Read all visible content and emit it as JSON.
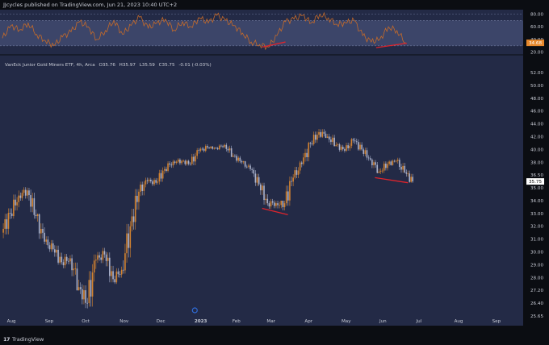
{
  "header": {
    "publisher_line": "JJcycles published on TradingView.com, Jun 21, 2023 10:40 UTC+2"
  },
  "footer": {
    "brand": "TradingView",
    "logo_glyph": "17"
  },
  "colors": {
    "background": "#232a46",
    "osc_band": "#3c4569",
    "osc_line": "#c46a2a",
    "up_candle": "#d4832f",
    "down_candle": "#aab2cc",
    "divergence": "#e0242c",
    "price_label_bg": "#ffffff",
    "osc_label_bg": "#e8882b",
    "event_marker": "#2f6bd6"
  },
  "chart_data": [
    {
      "type": "line",
      "role": "oscillator",
      "yticks": [
        20.0,
        40.0,
        60.0,
        80.0
      ],
      "ylim": [
        17,
        87
      ],
      "band": [
        30,
        70
      ],
      "current_value": "34.68",
      "x": [
        "2022-07-25",
        "2022-08-01",
        "2022-08-08",
        "2022-08-15",
        "2022-08-22",
        "2022-08-29",
        "2022-09-05",
        "2022-09-12",
        "2022-09-19",
        "2022-09-26",
        "2022-10-03",
        "2022-10-10",
        "2022-10-17",
        "2022-10-24",
        "2022-10-31",
        "2022-11-07",
        "2022-11-14",
        "2022-11-21",
        "2022-11-28",
        "2022-12-05",
        "2022-12-12",
        "2022-12-19",
        "2022-12-26",
        "2023-01-02",
        "2023-01-09",
        "2023-01-16",
        "2023-01-23",
        "2023-01-30",
        "2023-02-06",
        "2023-02-13",
        "2023-02-20",
        "2023-02-27",
        "2023-03-06",
        "2023-03-13",
        "2023-03-20",
        "2023-03-27",
        "2023-04-03",
        "2023-04-10",
        "2023-04-17",
        "2023-04-24",
        "2023-05-01",
        "2023-05-08",
        "2023-05-15",
        "2023-05-22",
        "2023-05-29",
        "2023-06-05",
        "2023-06-12",
        "2023-06-19"
      ],
      "values": [
        42,
        62,
        55,
        66,
        48,
        38,
        30,
        44,
        52,
        68,
        60,
        40,
        54,
        70,
        48,
        62,
        75,
        58,
        66,
        72,
        55,
        68,
        60,
        74,
        66,
        78,
        70,
        62,
        50,
        36,
        32,
        28,
        46,
        68,
        72,
        78,
        66,
        80,
        74,
        64,
        66,
        70,
        46,
        36,
        40,
        60,
        54,
        35
      ],
      "divergence_lines": [
        {
          "x": [
            "2023-02-22",
            "2023-03-13"
          ],
          "y": [
            28,
            36
          ]
        },
        {
          "x": [
            "2023-05-26",
            "2023-06-20"
          ],
          "y": [
            27,
            34
          ]
        }
      ]
    },
    {
      "type": "candlestick",
      "role": "price",
      "title": "VanEck Junior Gold Miners ETF, 4h, Arca",
      "ohlc_line": {
        "o": "O35.76",
        "h": "H35.97",
        "l": "L35.59",
        "c": "C35.75",
        "chg": "-0.01 (-0.03%)"
      },
      "yticks": [
        25.65,
        26.4,
        27.2,
        28.0,
        29.0,
        30.0,
        31.0,
        32.0,
        33.0,
        34.0,
        35.0,
        36.5,
        38.0,
        40.0,
        42.0,
        44.0,
        46.0,
        48.0,
        50.0,
        52.0
      ],
      "current_value": "35.75",
      "xticks": [
        "Aug",
        "Sep",
        "Oct",
        "Nov",
        "Dec",
        "2023",
        "Feb",
        "Mar",
        "Apr",
        "May",
        "Jun",
        "Jul",
        "Aug",
        "Sep"
      ],
      "xtick_dates": [
        "2022-08-01",
        "2022-09-01",
        "2022-10-01",
        "2022-11-01",
        "2022-12-01",
        "2023-01-01",
        "2023-02-01",
        "2023-03-01",
        "2023-04-01",
        "2023-05-01",
        "2023-06-01",
        "2023-07-01",
        "2023-08-01",
        "2023-09-01"
      ],
      "x": [
        "2022-07-25",
        "2022-08-01",
        "2022-08-08",
        "2022-08-15",
        "2022-08-22",
        "2022-08-29",
        "2022-09-05",
        "2022-09-12",
        "2022-09-19",
        "2022-09-26",
        "2022-10-03",
        "2022-10-10",
        "2022-10-17",
        "2022-10-24",
        "2022-10-31",
        "2022-11-07",
        "2022-11-14",
        "2022-11-21",
        "2022-11-28",
        "2022-12-05",
        "2022-12-12",
        "2022-12-19",
        "2022-12-26",
        "2023-01-02",
        "2023-01-09",
        "2023-01-16",
        "2023-01-23",
        "2023-01-30",
        "2023-02-06",
        "2023-02-13",
        "2023-02-20",
        "2023-02-27",
        "2023-03-06",
        "2023-03-13",
        "2023-03-20",
        "2023-03-27",
        "2023-04-03",
        "2023-04-10",
        "2023-04-17",
        "2023-04-24",
        "2023-05-01",
        "2023-05-08",
        "2023-05-15",
        "2023-05-22",
        "2023-05-29",
        "2023-06-05",
        "2023-06-12",
        "2023-06-19"
      ],
      "open": [
        31.5,
        33.0,
        34.4,
        34.8,
        32.8,
        30.8,
        30.2,
        29.2,
        29.5,
        27.4,
        26.4,
        29.4,
        29.8,
        27.9,
        28.6,
        32.0,
        34.7,
        35.8,
        35.6,
        37.2,
        38.1,
        38.2,
        37.8,
        39.8,
        40.3,
        40.2,
        40.7,
        39.0,
        38.0,
        37.2,
        35.4,
        33.8,
        33.8,
        33.8,
        36.2,
        37.8,
        40.9,
        42.7,
        42.0,
        40.7,
        39.8,
        41.4,
        40.0,
        38.4,
        36.9,
        37.8,
        38.2,
        36.8
      ],
      "high": [
        33.4,
        34.8,
        35.3,
        35.0,
        33.0,
        31.4,
        30.8,
        30.0,
        29.8,
        27.7,
        29.8,
        30.4,
        30.0,
        29.0,
        32.4,
        34.9,
        36.2,
        36.4,
        37.5,
        38.4,
        38.8,
        38.7,
        40.2,
        40.8,
        40.6,
        41.0,
        41.0,
        39.3,
        38.2,
        37.4,
        35.6,
        34.2,
        34.0,
        36.6,
        38.2,
        41.2,
        43.3,
        44.2,
        43.0,
        41.0,
        41.8,
        42.1,
        40.3,
        38.6,
        38.2,
        38.8,
        38.7,
        37.5
      ],
      "low": [
        31.0,
        32.6,
        34.0,
        32.6,
        30.6,
        30.0,
        29.0,
        28.7,
        27.2,
        26.0,
        26.2,
        29.0,
        27.7,
        27.6,
        28.3,
        31.6,
        34.3,
        35.2,
        35.4,
        36.8,
        37.6,
        37.6,
        37.6,
        39.4,
        39.9,
        39.9,
        38.8,
        37.8,
        37.0,
        35.2,
        33.6,
        33.2,
        32.6,
        33.6,
        36.0,
        37.6,
        40.6,
        41.8,
        40.5,
        39.4,
        39.6,
        39.8,
        38.2,
        36.7,
        36.6,
        37.6,
        36.7,
        35.6
      ],
      "close": [
        33.0,
        34.4,
        34.8,
        32.8,
        30.8,
        30.2,
        29.2,
        29.5,
        27.4,
        26.4,
        29.4,
        29.8,
        27.9,
        28.6,
        32.0,
        34.7,
        35.8,
        35.6,
        37.2,
        38.1,
        38.2,
        37.8,
        39.8,
        40.3,
        40.2,
        40.7,
        39.0,
        38.0,
        37.2,
        35.4,
        33.8,
        33.8,
        33.8,
        36.2,
        37.8,
        40.9,
        42.7,
        42.0,
        40.7,
        39.8,
        41.4,
        40.0,
        38.4,
        36.9,
        37.8,
        38.2,
        36.8,
        35.75
      ],
      "divergence_lines": [
        {
          "x": [
            "2023-02-22",
            "2023-03-15"
          ],
          "y": [
            33.4,
            32.9
          ]
        },
        {
          "x": [
            "2023-05-25",
            "2023-06-21"
          ],
          "y": [
            36.2,
            35.6
          ]
        }
      ],
      "event_marker_date": "2022-12-29"
    }
  ]
}
